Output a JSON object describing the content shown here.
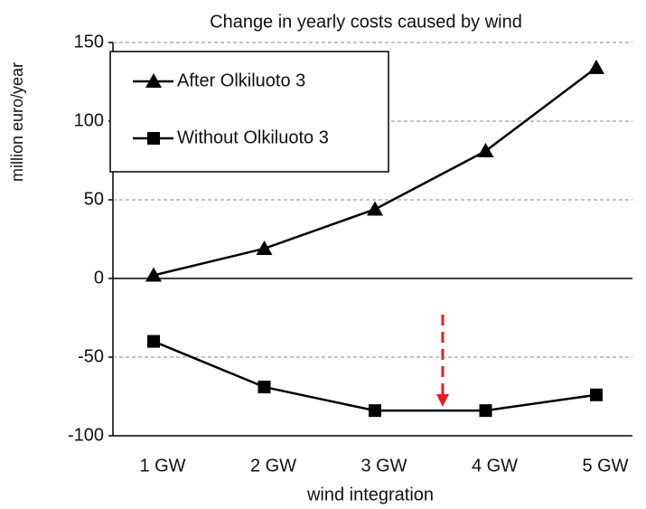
{
  "chart_data": {
    "type": "line",
    "title": "Change in yearly costs caused by wind",
    "x_label": "wind integration",
    "y_label": "million euro/year",
    "categories": [
      "1 GW",
      "2 GW",
      "3 GW",
      "4 GW",
      "5 GW"
    ],
    "series": [
      {
        "name": "After Olkiluoto 3",
        "color": "#000000",
        "marker": "triangle",
        "values": [
          2,
          19,
          44,
          81,
          134
        ]
      },
      {
        "name": "Without Olkiluoto 3",
        "color": "#000000",
        "marker": "square",
        "values": [
          -40,
          -69,
          -84,
          -84,
          -74
        ]
      }
    ],
    "ylim": [
      -100,
      150
    ],
    "yticks": [
      -100,
      -50,
      0,
      50,
      100,
      150
    ],
    "grid": true,
    "legend": "upper left"
  }
}
